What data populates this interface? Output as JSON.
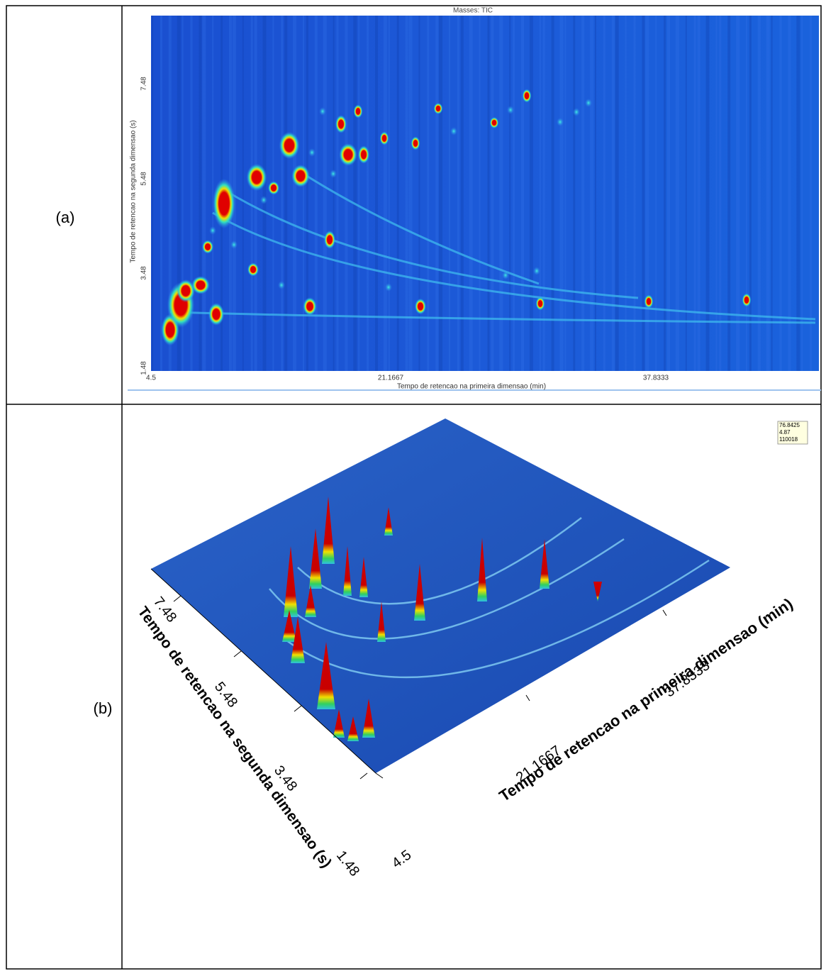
{
  "table": {
    "rows": [
      {
        "label": "(a)",
        "figure": {
          "title": "Masses: TIC",
          "y_axis_label": "Tempo de retencao na segunda dimensao (s)",
          "y_ticks": [
            "7.48",
            "5.48",
            "3.48",
            "1.48"
          ],
          "x_ticks": [
            "4.5",
            "21.1667",
            "37.8333"
          ],
          "x_axis_label": "Tempo de retencao na primeira dimensao (min)"
        }
      },
      {
        "label": "(b)",
        "figure": {
          "y_ticks": [
            "7.48",
            "5.48",
            "3.48",
            "1.48"
          ],
          "y_axis_label": "Tempo de retencao na segunda dimensao (s)",
          "x_ticks": [
            "4.5",
            "21.1667",
            "37.8333"
          ],
          "x_axis_label": "Tempo de retencao na primeira dimensao (min)",
          "tooltip": [
            "76.8425",
            "4.87",
            "110018"
          ]
        }
      }
    ]
  }
}
